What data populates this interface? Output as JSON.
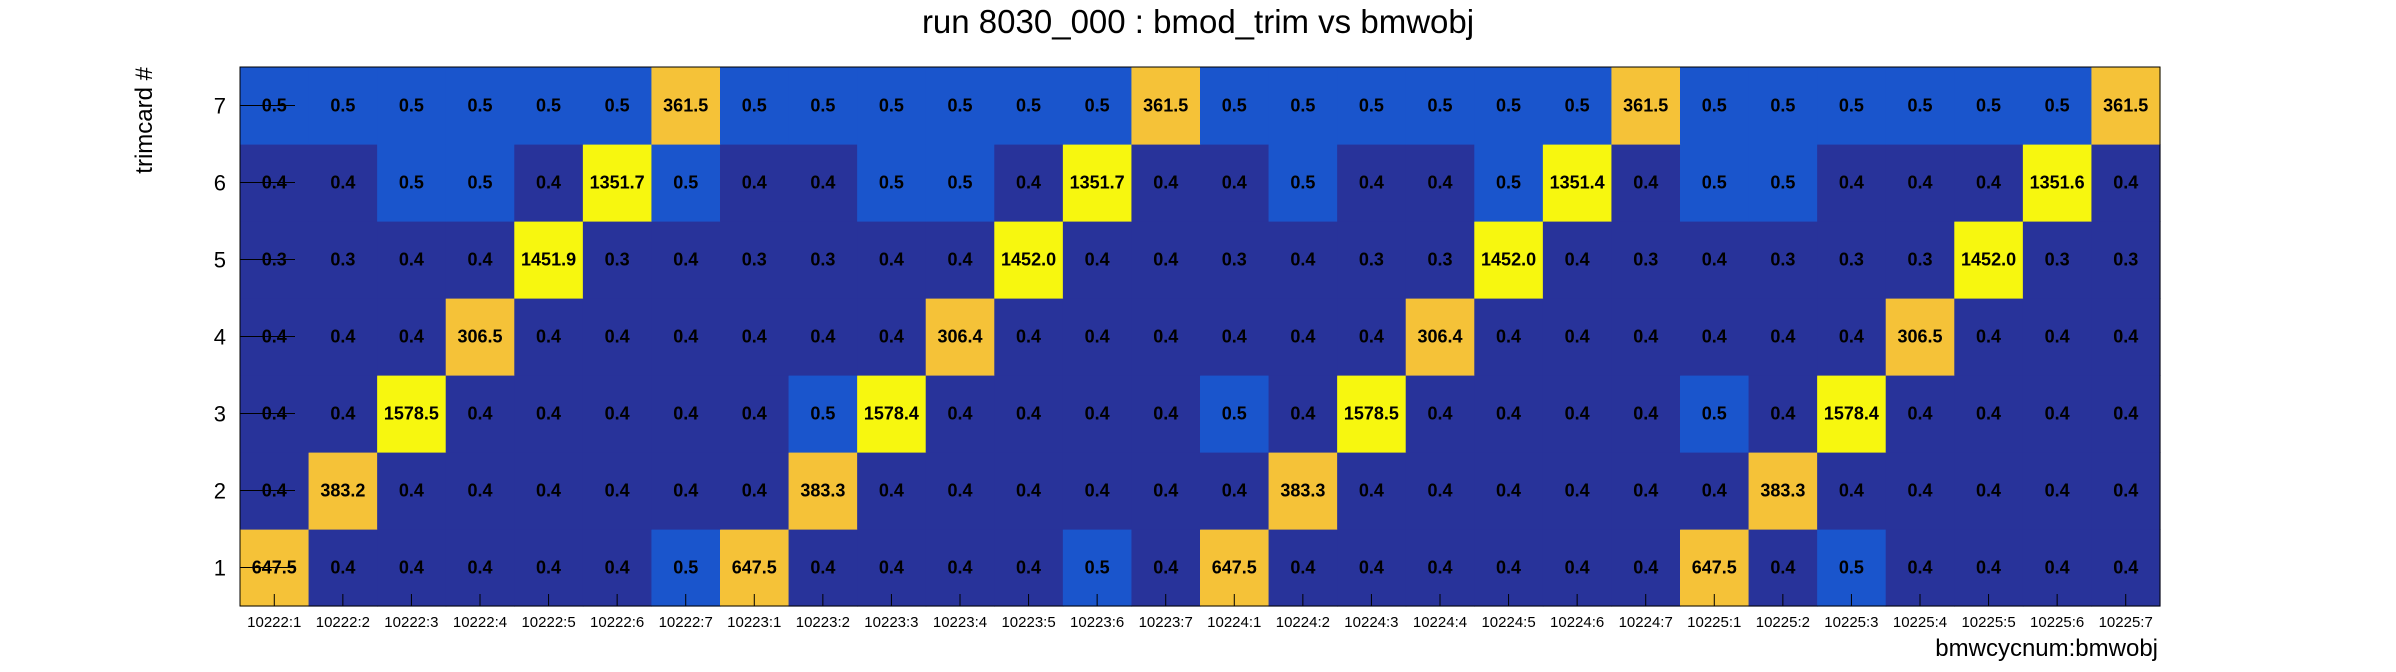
{
  "chart_data": {
    "type": "heatmap",
    "title": "run 8030_000 : bmod_trim vs bmwobj",
    "xlabel": "bmwcycnum:bmwobj",
    "ylabel": "trimcard #",
    "x_categories": [
      "10222:1",
      "10222:2",
      "10222:3",
      "10222:4",
      "10222:5",
      "10222:6",
      "10222:7",
      "10223:1",
      "10223:2",
      "10223:3",
      "10223:4",
      "10223:5",
      "10223:6",
      "10223:7",
      "10224:1",
      "10224:2",
      "10224:3",
      "10224:4",
      "10224:5",
      "10224:6",
      "10224:7",
      "10225:1",
      "10225:2",
      "10225:3",
      "10225:4",
      "10225:5",
      "10225:6",
      "10225:7"
    ],
    "y_categories": [
      "1",
      "2",
      "3",
      "4",
      "5",
      "6",
      "7"
    ],
    "values": [
      [
        "647.5",
        "0.4",
        "0.4",
        "0.4",
        "0.4",
        "0.4",
        "0.5",
        "647.5",
        "0.4",
        "0.4",
        "0.4",
        "0.4",
        "0.5",
        "0.4",
        "647.5",
        "0.4",
        "0.4",
        "0.4",
        "0.4",
        "0.4",
        "0.4",
        "647.5",
        "0.4",
        "0.5",
        "0.4",
        "0.4",
        "0.4",
        "0.4"
      ],
      [
        "0.4",
        "383.2",
        "0.4",
        "0.4",
        "0.4",
        "0.4",
        "0.4",
        "0.4",
        "383.3",
        "0.4",
        "0.4",
        "0.4",
        "0.4",
        "0.4",
        "0.4",
        "383.3",
        "0.4",
        "0.4",
        "0.4",
        "0.4",
        "0.4",
        "0.4",
        "383.3",
        "0.4",
        "0.4",
        "0.4",
        "0.4",
        "0.4"
      ],
      [
        "0.4",
        "0.4",
        "1578.5",
        "0.4",
        "0.4",
        "0.4",
        "0.4",
        "0.4",
        "0.5",
        "1578.4",
        "0.4",
        "0.4",
        "0.4",
        "0.4",
        "0.5",
        "0.4",
        "1578.5",
        "0.4",
        "0.4",
        "0.4",
        "0.4",
        "0.5",
        "0.4",
        "1578.4",
        "0.4",
        "0.4",
        "0.4",
        "0.4"
      ],
      [
        "0.4",
        "0.4",
        "0.4",
        "306.5",
        "0.4",
        "0.4",
        "0.4",
        "0.4",
        "0.4",
        "0.4",
        "306.4",
        "0.4",
        "0.4",
        "0.4",
        "0.4",
        "0.4",
        "0.4",
        "306.4",
        "0.4",
        "0.4",
        "0.4",
        "0.4",
        "0.4",
        "0.4",
        "306.5",
        "0.4",
        "0.4",
        "0.4"
      ],
      [
        "0.3",
        "0.3",
        "0.4",
        "0.4",
        "1451.9",
        "0.3",
        "0.4",
        "0.3",
        "0.3",
        "0.4",
        "0.4",
        "1452.0",
        "0.4",
        "0.4",
        "0.3",
        "0.4",
        "0.3",
        "0.3",
        "1452.0",
        "0.4",
        "0.3",
        "0.4",
        "0.3",
        "0.3",
        "0.3",
        "1452.0",
        "0.3",
        "0.3"
      ],
      [
        "0.4",
        "0.4",
        "0.5",
        "0.5",
        "0.4",
        "1351.7",
        "0.5",
        "0.4",
        "0.4",
        "0.5",
        "0.5",
        "0.4",
        "1351.7",
        "0.4",
        "0.4",
        "0.5",
        "0.4",
        "0.4",
        "0.5",
        "1351.4",
        "0.4",
        "0.5",
        "0.5",
        "0.4",
        "0.4",
        "0.4",
        "1351.6",
        "0.4"
      ],
      [
        "0.5",
        "0.5",
        "0.5",
        "0.5",
        "0.5",
        "0.5",
        "361.5",
        "0.5",
        "0.5",
        "0.5",
        "0.5",
        "0.5",
        "0.5",
        "361.5",
        "0.5",
        "0.5",
        "0.5",
        "0.5",
        "0.5",
        "0.5",
        "361.5",
        "0.5",
        "0.5",
        "0.5",
        "0.5",
        "0.5",
        "0.5",
        "361.5"
      ]
    ],
    "colors": {
      "low_dark": "#28339a",
      "low_mid": "#1a55cc",
      "mid": "#f5c238",
      "high": "#f7f70f"
    },
    "grid": false,
    "legend": "none"
  }
}
